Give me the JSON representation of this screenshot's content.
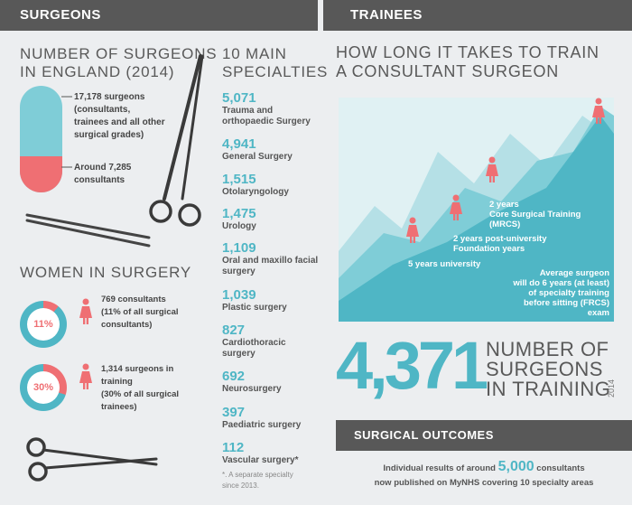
{
  "surgeons": {
    "header": "SURGEONS",
    "number_title": [
      "NUMBER OF SURGEONS",
      "IN ENGLAND (2014)"
    ],
    "total_label": [
      "17,178 surgeons",
      "(consultants,",
      "trainees and all other",
      "surgical grades)"
    ],
    "consultants_label": [
      "Around 7,285",
      "consultants"
    ],
    "specialties_title": [
      "10 MAIN",
      "SPECIALTIES"
    ],
    "specialties": [
      {
        "num": "5,071",
        "name": [
          "Trauma and",
          "orthopaedic Surgery"
        ]
      },
      {
        "num": "4,941",
        "name": [
          "General Surgery"
        ]
      },
      {
        "num": "1,515",
        "name": [
          "Otolaryngology"
        ]
      },
      {
        "num": "1,475",
        "name": [
          "Urology"
        ]
      },
      {
        "num": "1,109",
        "name": [
          "Oral and maxillo facial",
          "surgery"
        ]
      },
      {
        "num": "1,039",
        "name": [
          "Plastic surgery"
        ]
      },
      {
        "num": "827",
        "name": [
          "Cardiothoracic",
          "surgery"
        ]
      },
      {
        "num": "692",
        "name": [
          "Neurosurgery"
        ]
      },
      {
        "num": "397",
        "name": [
          "Paediatric surgery"
        ]
      },
      {
        "num": "112",
        "name": [
          "Vascular surgery*"
        ]
      }
    ],
    "footnote": [
      "*. A separate specialty",
      "since 2013."
    ],
    "women_title": "WOMEN IN SURGERY",
    "women": [
      {
        "pct": "11%",
        "fraction": 0.11,
        "text": [
          "769 consultants",
          "(11% of all surgical",
          "consultants)"
        ]
      },
      {
        "pct": "30%",
        "fraction": 0.3,
        "text": [
          "1,314 surgeons in",
          "training",
          "(30% of all surgical",
          "trainees)"
        ]
      }
    ]
  },
  "trainees": {
    "header": "TRAINEES",
    "title": [
      "HOW LONG IT TAKES TO TRAIN",
      "A CONSULTANT SURGEON"
    ],
    "steps": [
      {
        "text": [
          "5 years university"
        ]
      },
      {
        "text": [
          "2 years post-university",
          "Foundation years"
        ]
      },
      {
        "text": [
          "2 years",
          "Core Surgical Training",
          "(MRCS)"
        ]
      },
      {
        "text": [
          "Average surgeon",
          "will do 6 years (at least)",
          "of specialty training",
          "before sitting (FRCS) exam"
        ]
      }
    ],
    "big_number": "4,371",
    "big_number_label": [
      "NUMBER OF",
      "SURGEONS",
      "IN TRAINING"
    ],
    "year": "2014"
  },
  "outcomes": {
    "header": "SURGICAL OUTCOMES",
    "text_before": "Individual results of around",
    "number": "5,000",
    "text_after": "consultants",
    "line2": "now published on MyNHS covering 10 specialty areas"
  },
  "colors": {
    "teal": "#4fb6c5",
    "pink": "#ef6f73",
    "dark": "#585858"
  }
}
